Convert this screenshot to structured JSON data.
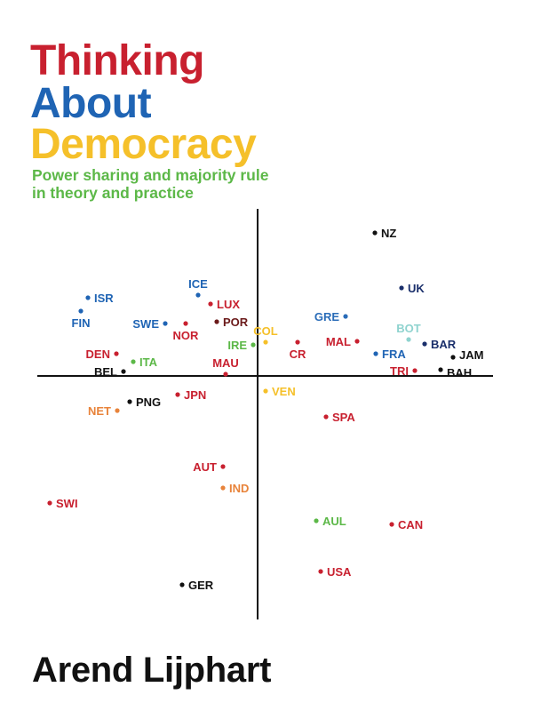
{
  "cover": {
    "title_lines": [
      "Thinking",
      "About",
      "Democracy"
    ],
    "subtitle_lines": [
      "Power sharing and majority rule",
      "in theory and practice"
    ],
    "author": "Arend Lijphart",
    "colors": {
      "red": "#c8202f",
      "blue": "#1f64b4",
      "yellow": "#f5c02a",
      "green": "#5cb848"
    }
  },
  "chart_data": {
    "type": "scatter",
    "title": "",
    "xlabel": "",
    "ylabel": "",
    "xlim": [
      -2.48,
      2.65
    ],
    "ylim": [
      -2.74,
      1.88
    ],
    "grid": false,
    "axes": "crossing at origin",
    "points": [
      {
        "label": "NZ",
        "x": 1.32,
        "y": 1.61,
        "color": "#111111",
        "label_side": "right"
      },
      {
        "label": "UK",
        "x": 1.62,
        "y": 0.99,
        "color": "#1a2f6b",
        "label_side": "right"
      },
      {
        "label": "GRE",
        "x": 0.99,
        "y": 0.67,
        "color": "#2a6cb8",
        "label_side": "left"
      },
      {
        "label": "BOT",
        "x": 1.7,
        "y": 0.41,
        "color": "#8fd3cf",
        "label_side": "above"
      },
      {
        "label": "BAR",
        "x": 1.88,
        "y": 0.36,
        "color": "#1a2f6b",
        "label_side": "right"
      },
      {
        "label": "MAL",
        "x": 1.12,
        "y": 0.39,
        "color": "#c8202f",
        "label_side": "left"
      },
      {
        "label": "FRA",
        "x": 1.33,
        "y": 0.25,
        "color": "#1f64b4",
        "label_side": "right"
      },
      {
        "label": "JAM",
        "x": 2.2,
        "y": 0.21,
        "color": "#111111",
        "label_side": "right"
      },
      {
        "label": "BAH",
        "x": 2.06,
        "y": 0.07,
        "color": "#111111",
        "label_side": "right"
      },
      {
        "label": "TRI",
        "x": 1.77,
        "y": 0.06,
        "color": "#c8202f",
        "label_side": "left"
      },
      {
        "label": "COL",
        "x": 0.09,
        "y": 0.38,
        "color": "#f5c02a",
        "label_side": "above"
      },
      {
        "label": "CR",
        "x": 0.45,
        "y": 0.38,
        "color": "#c8202f",
        "label_side": "below"
      },
      {
        "label": "VEN",
        "x": 0.09,
        "y": -0.17,
        "color": "#f5c02a",
        "label_side": "right"
      },
      {
        "label": "SPA",
        "x": 0.77,
        "y": -0.46,
        "color": "#c8202f",
        "label_side": "right"
      },
      {
        "label": "ISR",
        "x": -1.91,
        "y": 0.88,
        "color": "#1f64b4",
        "label_side": "right"
      },
      {
        "label": "FIN",
        "x": -1.99,
        "y": 0.73,
        "color": "#1f64b4",
        "label_side": "below"
      },
      {
        "label": "ICE",
        "x": -0.67,
        "y": 0.91,
        "color": "#1f64b4",
        "label_side": "above"
      },
      {
        "label": "LUX",
        "x": -0.53,
        "y": 0.81,
        "color": "#c8202f",
        "label_side": "right"
      },
      {
        "label": "SWE",
        "x": -1.04,
        "y": 0.59,
        "color": "#1f64b4",
        "label_side": "left"
      },
      {
        "label": "NOR",
        "x": -0.81,
        "y": 0.59,
        "color": "#c8202f",
        "label_side": "below"
      },
      {
        "label": "POR",
        "x": -0.46,
        "y": 0.61,
        "color": "#6b1a1a",
        "label_side": "right"
      },
      {
        "label": "IRE",
        "x": -0.05,
        "y": 0.35,
        "color": "#5cb848",
        "label_side": "left"
      },
      {
        "label": "MAU",
        "x": -0.36,
        "y": 0.02,
        "color": "#c8202f",
        "label_side": "above"
      },
      {
        "label": "DEN",
        "x": -1.59,
        "y": 0.25,
        "color": "#c8202f",
        "label_side": "left"
      },
      {
        "label": "ITA",
        "x": -1.4,
        "y": 0.16,
        "color": "#5cb848",
        "label_side": "right"
      },
      {
        "label": "BEL",
        "x": -1.51,
        "y": 0.05,
        "color": "#111111",
        "label_side": "left"
      },
      {
        "label": "JPN",
        "x": -0.9,
        "y": -0.21,
        "color": "#c8202f",
        "label_side": "right"
      },
      {
        "label": "PNG",
        "x": -1.44,
        "y": -0.29,
        "color": "#111111",
        "label_side": "right"
      },
      {
        "label": "NET",
        "x": -1.58,
        "y": -0.39,
        "color": "#e8833a",
        "label_side": "left"
      },
      {
        "label": "AUT",
        "x": -0.39,
        "y": -1.02,
        "color": "#c8202f",
        "label_side": "left"
      },
      {
        "label": "IND",
        "x": -0.39,
        "y": -1.26,
        "color": "#e8833a",
        "label_side": "right"
      },
      {
        "label": "SWI",
        "x": -2.34,
        "y": -1.43,
        "color": "#c8202f",
        "label_side": "right"
      },
      {
        "label": "AUL",
        "x": 0.66,
        "y": -1.63,
        "color": "#5cb848",
        "label_side": "right"
      },
      {
        "label": "CAN",
        "x": 1.51,
        "y": -1.67,
        "color": "#c8202f",
        "label_side": "right"
      },
      {
        "label": "USA",
        "x": 0.71,
        "y": -2.2,
        "color": "#c8202f",
        "label_side": "right"
      },
      {
        "label": "GER",
        "x": -0.85,
        "y": -2.35,
        "color": "#111111",
        "label_side": "right"
      }
    ]
  }
}
